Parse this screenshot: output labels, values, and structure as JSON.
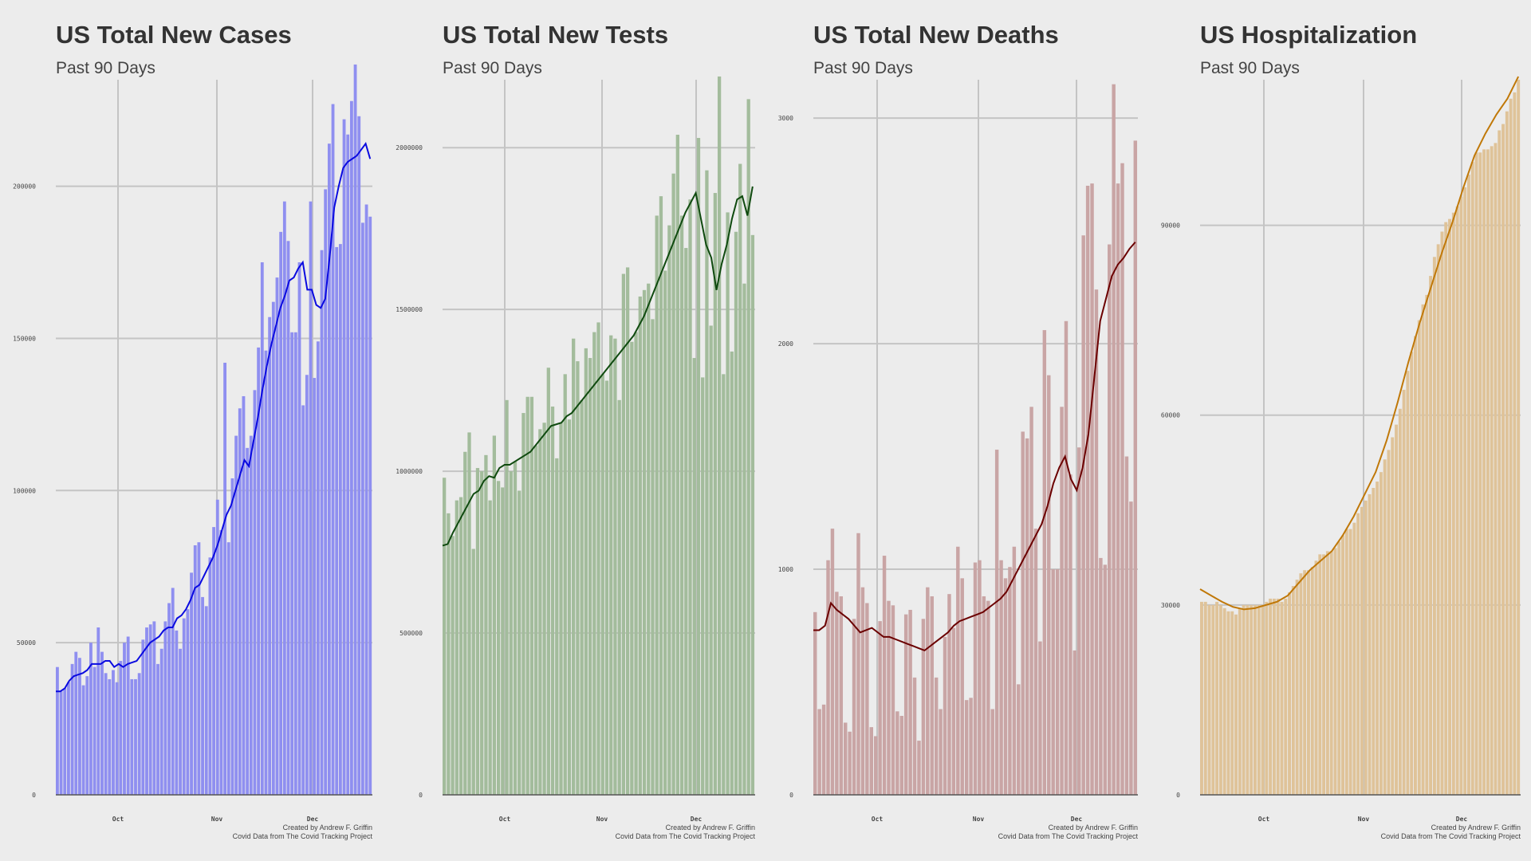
{
  "chart_data": [
    {
      "type": "bar",
      "title": "US Total New Cases",
      "subtitle": "Past 90 Days",
      "xlabel": "",
      "ylabel": "",
      "x_ticks": [
        "Oct",
        "Nov",
        "Dec"
      ],
      "y_ticks": [
        "0",
        "50000",
        "100000",
        "150000",
        "200000"
      ],
      "ylim": [
        0,
        235000
      ],
      "grid": true,
      "bar_color": "#8f8ff0",
      "line_color": "#0a0ae0",
      "caption_line1": "Created by Andrew F. Griffin",
      "caption_line2": "Covid Data from The Covid Tracking Project",
      "values": [
        42000,
        34000,
        35000,
        37000,
        43000,
        47000,
        45000,
        36000,
        39000,
        50000,
        42000,
        55000,
        47000,
        40000,
        38000,
        41000,
        37000,
        44000,
        50000,
        52000,
        38000,
        38000,
        40000,
        51000,
        55000,
        56000,
        57000,
        43000,
        48000,
        57000,
        63000,
        68000,
        54000,
        48000,
        58000,
        61000,
        73000,
        82000,
        83000,
        65000,
        62000,
        78000,
        88000,
        97000,
        87000,
        142000,
        83000,
        104000,
        118000,
        127000,
        131000,
        114000,
        118000,
        133000,
        147000,
        175000,
        146000,
        157000,
        162000,
        170000,
        185000,
        195000,
        182000,
        152000,
        152000,
        175000,
        128000,
        138000,
        195000,
        137000,
        149000,
        179000,
        199000,
        214000,
        227000,
        180000,
        181000,
        222000,
        217000,
        228000,
        240000,
        223000,
        188000,
        194000,
        190000
      ],
      "line_values": [
        34000,
        34000,
        35000,
        37500,
        39000,
        39500,
        40000,
        41000,
        43000,
        43000,
        43000,
        44000,
        44000,
        42000,
        43000,
        42000,
        43000,
        43500,
        44000,
        46000,
        48000,
        50000,
        51000,
        52000,
        54000,
        55000,
        55000,
        58000,
        59000,
        61000,
        64000,
        68000,
        69000,
        72000,
        75000,
        78000,
        82000,
        87000,
        92000,
        95000,
        100000,
        105000,
        110000,
        108000,
        116000,
        124000,
        133000,
        141000,
        148000,
        154000,
        160000,
        164000,
        169000,
        170000,
        173000,
        175000,
        166000,
        166000,
        161000,
        160000,
        163000,
        177000,
        193000,
        200000,
        206000,
        208000,
        209000,
        210000,
        212000,
        214000,
        209000
      ]
    },
    {
      "type": "bar",
      "title": "US Total New Tests",
      "subtitle": "Past 90 Days",
      "xlabel": "",
      "ylabel": "",
      "x_ticks": [
        "Oct",
        "Nov",
        "Dec"
      ],
      "y_ticks": [
        "0",
        "500000",
        "1000000",
        "1500000",
        "2000000"
      ],
      "ylim": [
        0,
        2210000
      ],
      "grid": true,
      "bar_color": "#a3bc9c",
      "line_color": "#0f4a0f",
      "caption_line1": "Created by Andrew F. Griffin",
      "caption_line2": "Covid Data from The Covid Tracking Project",
      "values": [
        980000,
        870000,
        800000,
        910000,
        920000,
        1060000,
        1120000,
        760000,
        1010000,
        1000000,
        1050000,
        910000,
        1110000,
        970000,
        950000,
        1220000,
        1000000,
        1030000,
        940000,
        1180000,
        1230000,
        1230000,
        1080000,
        1130000,
        1150000,
        1320000,
        1200000,
        1040000,
        1150000,
        1300000,
        1160000,
        1410000,
        1340000,
        1220000,
        1380000,
        1350000,
        1430000,
        1460000,
        1300000,
        1280000,
        1420000,
        1410000,
        1220000,
        1610000,
        1630000,
        1400000,
        1430000,
        1540000,
        1560000,
        1580000,
        1470000,
        1790000,
        1850000,
        1620000,
        1760000,
        1920000,
        2040000,
        1790000,
        1690000,
        1840000,
        1350000,
        2030000,
        1290000,
        1930000,
        1450000,
        1860000,
        2220000,
        1300000,
        1800000,
        1370000,
        1740000,
        1950000,
        1580000,
        2150000,
        1730000
      ],
      "line_values": [
        770000,
        775000,
        810000,
        840000,
        870000,
        900000,
        930000,
        940000,
        970000,
        985000,
        980000,
        1010000,
        1020000,
        1020000,
        1030000,
        1040000,
        1050000,
        1060000,
        1080000,
        1100000,
        1120000,
        1140000,
        1145000,
        1150000,
        1170000,
        1180000,
        1200000,
        1220000,
        1240000,
        1260000,
        1280000,
        1300000,
        1320000,
        1340000,
        1360000,
        1380000,
        1400000,
        1420000,
        1450000,
        1480000,
        1520000,
        1560000,
        1600000,
        1640000,
        1680000,
        1720000,
        1760000,
        1800000,
        1830000,
        1860000,
        1780000,
        1700000,
        1660000,
        1560000,
        1640000,
        1700000,
        1780000,
        1840000,
        1850000,
        1790000,
        1880000
      ]
    },
    {
      "type": "bar",
      "title": "US Total New Deaths",
      "subtitle": "Past 90 Days",
      "xlabel": "",
      "ylabel": "",
      "x_ticks": [
        "Oct",
        "Nov",
        "Dec"
      ],
      "y_ticks": [
        "0",
        "1000",
        "2000",
        "3000"
      ],
      "ylim": [
        0,
        3170000
      ],
      "grid": true,
      "bar_color": "#c9a5a5",
      "line_color": "#6b0000",
      "caption_line1": "Created by Andrew F. Griffin",
      "caption_line2": "Covid Data from The Covid Tracking Project",
      "values": [
        810,
        380,
        400,
        1040,
        1180,
        900,
        880,
        320,
        280,
        780,
        1160,
        920,
        850,
        300,
        260,
        770,
        1060,
        860,
        840,
        370,
        350,
        800,
        820,
        520,
        240,
        780,
        920,
        880,
        520,
        380,
        700,
        890,
        740,
        1100,
        960,
        420,
        430,
        1030,
        1040,
        880,
        860,
        380,
        1530,
        1040,
        960,
        1010,
        1100,
        490,
        1610,
        1580,
        1720,
        1180,
        680,
        2060,
        1860,
        1000,
        1000,
        1720,
        2100,
        1420,
        640,
        1540,
        2480,
        2700,
        2710,
        2240,
        1050,
        1020,
        2440,
        3150,
        2710,
        2800,
        1500,
        1300,
        2900
      ],
      "line_values": [
        730,
        730,
        750,
        850,
        820,
        800,
        780,
        750,
        720,
        730,
        740,
        720,
        700,
        700,
        690,
        680,
        670,
        660,
        650,
        640,
        660,
        680,
        700,
        720,
        750,
        770,
        780,
        790,
        800,
        810,
        830,
        850,
        870,
        900,
        950,
        1000,
        1050,
        1100,
        1150,
        1200,
        1280,
        1380,
        1450,
        1500,
        1400,
        1350,
        1450,
        1600,
        1850,
        2100,
        2200,
        2300,
        2350,
        2380,
        2420,
        2450
      ]
    },
    {
      "type": "bar",
      "title": "US Hospitalization",
      "subtitle": "Past 90 Days",
      "xlabel": "",
      "ylabel": "",
      "x_ticks": [
        "Oct",
        "Nov",
        "Dec"
      ],
      "y_ticks": [
        "0",
        "30000",
        "60000",
        "90000"
      ],
      "ylim": [
        0,
        113000
      ],
      "grid": true,
      "bar_color": "#dfc399",
      "line_color": "#c07808",
      "caption_line1": "Created by Andrew F. Griffin",
      "caption_line2": "Covid Data from The Covid Tracking Project",
      "values": [
        30500,
        30500,
        30000,
        30000,
        30500,
        30000,
        29500,
        29000,
        29000,
        28500,
        29500,
        30000,
        30000,
        30000,
        30000,
        30000,
        30000,
        30500,
        31000,
        31000,
        31000,
        30500,
        31000,
        32000,
        33000,
        34000,
        35000,
        35500,
        35500,
        36000,
        37000,
        38000,
        38000,
        38500,
        38500,
        39000,
        40000,
        41000,
        42000,
        42000,
        43000,
        44500,
        45500,
        46500,
        47500,
        48500,
        49500,
        51000,
        53000,
        54500,
        56500,
        58500,
        61000,
        64000,
        67000,
        70000,
        72500,
        75000,
        77500,
        79000,
        82000,
        85000,
        87000,
        89000,
        90500,
        91000,
        92000,
        93000,
        94500,
        96000,
        98000,
        100000,
        101500,
        101500,
        102000,
        102000,
        102500,
        103000,
        105000,
        106000,
        108000,
        110000,
        111000,
        113000
      ],
      "line_values": [
        32500,
        31500,
        30500,
        29700,
        29300,
        29500,
        30000,
        30500,
        31500,
        33500,
        35500,
        37000,
        38500,
        41000,
        44000,
        47500,
        51000,
        56000,
        62000,
        68500,
        74500,
        80000,
        85500,
        90500,
        96000,
        101000,
        104500,
        107500,
        110000,
        113500
      ]
    }
  ]
}
